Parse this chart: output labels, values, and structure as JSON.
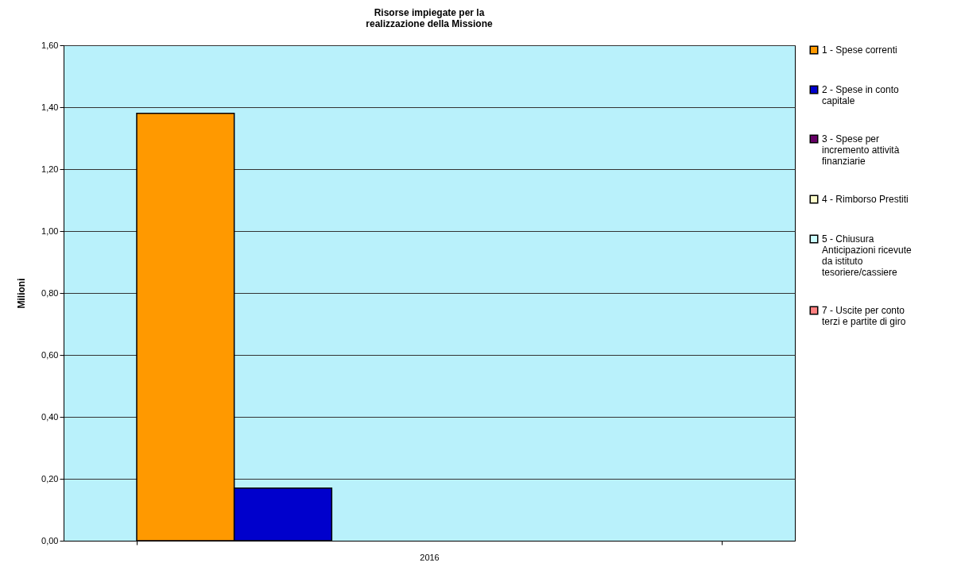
{
  "chart_data": {
    "type": "bar",
    "title": "Risorse impiegate per la realizzazione della Missione",
    "ylabel": "Milioni",
    "categories": [
      "2016"
    ],
    "series": [
      {
        "name": "1 - Spese correnti",
        "color": "#ff9900",
        "values": [
          1.38
        ]
      },
      {
        "name": "2 - Spese in conto capitale",
        "color": "#0000cc",
        "values": [
          0.17
        ]
      },
      {
        "name": "3 - Spese per incremento attività finanziarie",
        "color": "#660066",
        "values": [
          null
        ]
      },
      {
        "name": "4 - Rimborso Prestiti",
        "color": "#ffffcc",
        "values": [
          null
        ]
      },
      {
        "name": "5 - Chiusura Anticipazioni ricevute da istituto tesoriere/cassiere",
        "color": "#ccffff",
        "values": [
          null
        ]
      },
      {
        "name": "7 - Uscite per conto terzi e partite di giro",
        "color": "#ff8080",
        "values": [
          null
        ]
      }
    ],
    "ylim": [
      0,
      1.6
    ],
    "yticks": [
      {
        "value": 0,
        "label": "0,00"
      },
      {
        "value": 0.2,
        "label": "0,20"
      },
      {
        "value": 0.4,
        "label": "0,40"
      },
      {
        "value": 0.6,
        "label": "0,60"
      },
      {
        "value": 0.8,
        "label": "0,80"
      },
      {
        "value": 1.0,
        "label": "1,00"
      },
      {
        "value": 1.2,
        "label": "1,20"
      },
      {
        "value": 1.4,
        "label": "1,40"
      },
      {
        "value": 1.6,
        "label": "1,60"
      }
    ],
    "grid": "y",
    "legend": "right"
  }
}
